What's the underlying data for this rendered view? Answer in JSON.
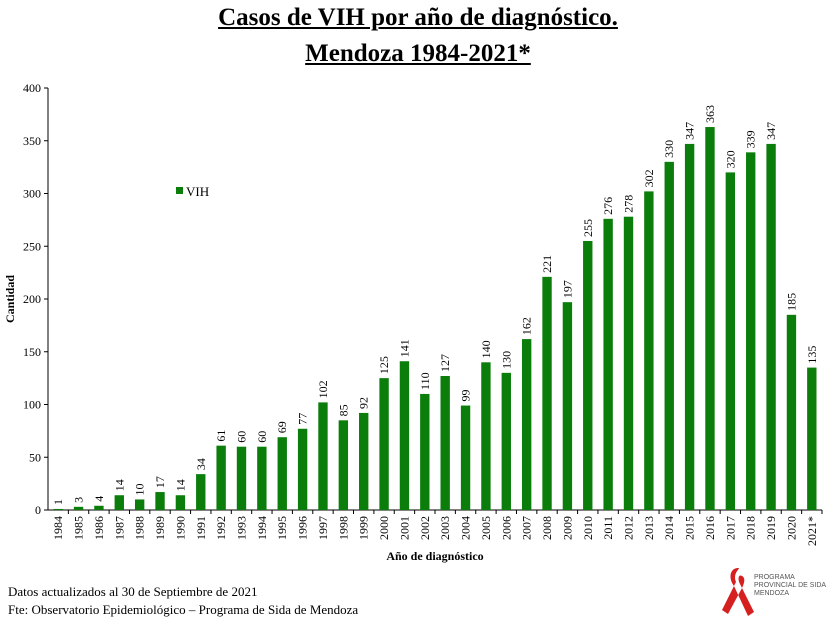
{
  "title_line1": "Casos de VIH por año de diagnóstico.",
  "title_line2": "Mendoza 1984-2021*",
  "chart_data": {
    "type": "bar",
    "categories": [
      "1984",
      "1985",
      "1986",
      "1987",
      "1988",
      "1989",
      "1990",
      "1991",
      "1992",
      "1993",
      "1994",
      "1995",
      "1996",
      "1997",
      "1998",
      "1999",
      "2000",
      "2001",
      "2002",
      "2003",
      "2004",
      "2005",
      "2006",
      "2007",
      "2008",
      "2009",
      "2010",
      "2011",
      "2012",
      "2013",
      "2014",
      "2015",
      "2016",
      "2017",
      "2018",
      "2019",
      "2020",
      "2021*"
    ],
    "series": [
      {
        "name": "VIH",
        "color": "#0a7d0a",
        "values": [
          1,
          3,
          4,
          14,
          10,
          17,
          14,
          34,
          61,
          60,
          60,
          69,
          77,
          102,
          85,
          92,
          125,
          141,
          110,
          127,
          99,
          140,
          130,
          162,
          221,
          197,
          255,
          276,
          278,
          302,
          330,
          347,
          363,
          320,
          339,
          347,
          185,
          135
        ]
      }
    ],
    "xlabel": "Año de diagnóstico",
    "ylabel": "Cantidad",
    "ylim": [
      0,
      400
    ],
    "yticks": [
      0,
      50,
      100,
      150,
      200,
      250,
      300,
      350,
      400
    ],
    "grid": false,
    "legend_position": "upper-left"
  },
  "footer": {
    "line1": "Datos actualizados  al 30 de Septiembre  de 2021",
    "line2": "Fte: Observatorio  Epidemiológico  – Programa  de Sida de Mendoza"
  },
  "logo": {
    "line1": "PROGRAMA",
    "line2": "PROVINCIAL DE SIDA",
    "line3": "MENDOZA",
    "icon": "red-ribbon-icon",
    "color": "#d62020"
  }
}
